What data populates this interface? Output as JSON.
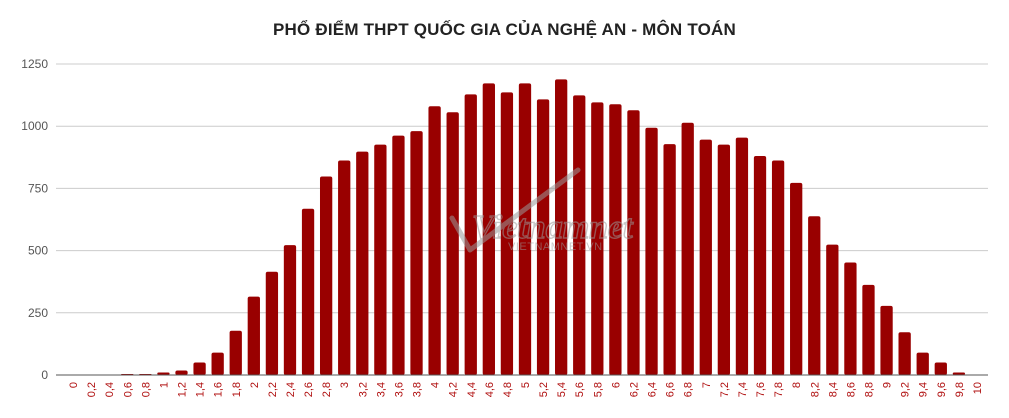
{
  "chart_data": {
    "type": "bar",
    "title": "PHỔ ĐIỂM THPT QUỐC GIA CỦA NGHỆ AN - MÔN TOÁN",
    "xlabel": "",
    "ylabel": "",
    "ylim": [
      0,
      1250
    ],
    "yticks": [
      "0",
      "250",
      "500",
      "750",
      "1000",
      "1250"
    ],
    "grid": true,
    "legend": "none",
    "bar_color": "#990000",
    "categories": [
      "0",
      "0,2",
      "0,4",
      "0,6",
      "0,8",
      "1",
      "1,2",
      "1,4",
      "1,6",
      "1,8",
      "2",
      "2,2",
      "2,4",
      "2,6",
      "2,8",
      "3",
      "3,2",
      "3,4",
      "3,6",
      "3,8",
      "4",
      "4,2",
      "4,4",
      "4,6",
      "4,8",
      "5",
      "5,2",
      "5,4",
      "5,6",
      "5,8",
      "6",
      "6,2",
      "6,4",
      "6,6",
      "6,8",
      "7",
      "7,2",
      "7,4",
      "7,6",
      "7,8",
      "8",
      "8,2",
      "8,4",
      "8,6",
      "8,8",
      "9",
      "9,2",
      "9,4",
      "9,6",
      "9,8",
      "10"
    ],
    "values": [
      0,
      0,
      0,
      4,
      4,
      10,
      18,
      50,
      90,
      178,
      315,
      415,
      522,
      668,
      798,
      862,
      898,
      926,
      962,
      980,
      1080,
      1056,
      1128,
      1172,
      1136,
      1172,
      1108,
      1188,
      1124,
      1096,
      1088,
      1064,
      994,
      928,
      1014,
      946,
      926,
      954,
      880,
      862,
      772,
      638,
      524,
      452,
      362,
      278,
      172,
      90,
      50,
      10,
      0
    ]
  },
  "watermark": {
    "brand": "Vietnamnet",
    "url": "VIETNAMNET.VN",
    "color": "#9a9a9a"
  }
}
